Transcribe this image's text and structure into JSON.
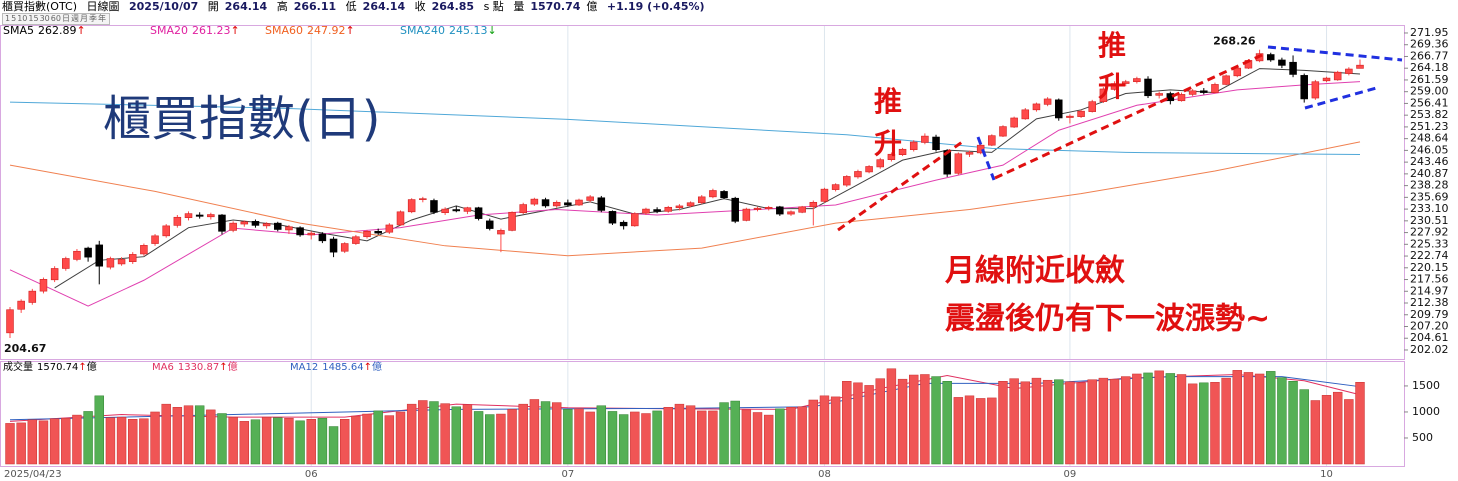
{
  "header": {
    "title": "櫃買指數(OTC)",
    "period": "日線圖",
    "date": "2025/10/07",
    "open_label": "開",
    "high_label": "高",
    "low_label": "低",
    "close_label": "收",
    "unit": "s 點",
    "volume_label": "量",
    "volume_unit": "億",
    "change": "+1.19 (+0.45%)",
    "toolbar": [
      "1",
      "5",
      "10",
      "15",
      "30",
      "60",
      "日",
      "週",
      "月",
      "季",
      "年"
    ]
  },
  "annotations": {
    "big_title": "櫃買指數(日)",
    "push1": [
      "推",
      "升"
    ],
    "push2": [
      "推",
      "升"
    ],
    "note1": "月線附近收斂",
    "note2": "震盪後仍有下一波漲勢~"
  },
  "chart_data": {
    "type": "candlestick",
    "up_color": "#ff4a4a",
    "down_color": "#000000",
    "ylim": [
      200.25,
      273.27
    ],
    "yticks": [
      271.95,
      269.36,
      266.77,
      264.18,
      261.59,
      {
        "value": 259.0,
        "label": "259.00"
      },
      256.41,
      253.82,
      251.23,
      248.64,
      246.05,
      243.46,
      240.87,
      238.28,
      235.69,
      {
        "value": 233.1,
        "label": "233.10"
      },
      230.51,
      227.92,
      225.33,
      222.74,
      220.15,
      217.56,
      214.97,
      212.38,
      209.79,
      {
        "value": 207.2,
        "label": "207.20"
      },
      204.61,
      202.02
    ],
    "xticks": [
      {
        "value": 0,
        "label": "2025/04/23"
      },
      {
        "value": 27,
        "label": "06"
      },
      {
        "value": 50,
        "label": "07"
      },
      {
        "value": 73,
        "label": "08"
      },
      {
        "value": 95,
        "label": "09"
      },
      {
        "value": 118,
        "label": "10"
      }
    ],
    "candles": [
      [
        205.8,
        211.5,
        204.67,
        210.9
      ],
      [
        211,
        213.2,
        210.2,
        212.8
      ],
      [
        212.5,
        215.5,
        212,
        215
      ],
      [
        215,
        218,
        214.5,
        217.6
      ],
      [
        217.5,
        220.5,
        217,
        220
      ],
      [
        220,
        222.6,
        219.5,
        222.2
      ],
      [
        222,
        224.3,
        221.6,
        223.8
      ],
      [
        224.5,
        224.8,
        221.5,
        222.5
      ],
      [
        225.2,
        226.1,
        216.5,
        220.5
      ],
      [
        220.3,
        222.6,
        219.8,
        222.2
      ],
      [
        221,
        222.5,
        220.6,
        222
      ],
      [
        221.5,
        223.6,
        221,
        223.1
      ],
      [
        223.2,
        225.5,
        222.8,
        225.1
      ],
      [
        225.5,
        227.6,
        225,
        227.2
      ],
      [
        227.2,
        229.8,
        226.8,
        229.4
      ],
      [
        229.5,
        231.8,
        229,
        231.3
      ],
      [
        231.2,
        232.6,
        230.6,
        232.1
      ],
      [
        231.8,
        232.4,
        231,
        231.5
      ],
      [
        231.4,
        232.3,
        230.8,
        231.9
      ],
      [
        231.8,
        232,
        227.5,
        228.2
      ],
      [
        228.4,
        230.4,
        228,
        230
      ],
      [
        229.8,
        230.6,
        229.2,
        230.3
      ],
      [
        230.4,
        230.8,
        229,
        229.5
      ],
      [
        229.4,
        230.2,
        228.8,
        229.9
      ],
      [
        230,
        230.3,
        228.2,
        228.6
      ],
      [
        228.5,
        229.6,
        227.6,
        229.2
      ],
      [
        229,
        229.3,
        227,
        227.4
      ],
      [
        227.4,
        228.2,
        226.4,
        227.8
      ],
      [
        227.6,
        228,
        225.6,
        226.1
      ],
      [
        226.5,
        227,
        222.5,
        223.6
      ],
      [
        223.8,
        225.8,
        223.4,
        225.5
      ],
      [
        225.5,
        227.4,
        225.2,
        227
      ],
      [
        227,
        228.5,
        226.6,
        228.2
      ],
      [
        228.2,
        228.8,
        227.4,
        227.8
      ],
      [
        228,
        230,
        227.6,
        229.6
      ],
      [
        229.6,
        232.8,
        229.4,
        232.5
      ],
      [
        232.5,
        235.5,
        232.2,
        235.2
      ],
      [
        235.2,
        235.8,
        234.6,
        235.4
      ],
      [
        235,
        235.4,
        232,
        232.4
      ],
      [
        232.3,
        233.5,
        231.8,
        233.1
      ],
      [
        233,
        233.8,
        232.4,
        232.7
      ],
      [
        232.6,
        233.6,
        232,
        233.4
      ],
      [
        233.4,
        233.6,
        230.6,
        231
      ],
      [
        230.5,
        231,
        228.4,
        228.8
      ],
      [
        227.6,
        228.8,
        223.6,
        228.4
      ],
      [
        228.4,
        232.6,
        228.2,
        232.4
      ],
      [
        232.3,
        234.5,
        232,
        234.1
      ],
      [
        234.2,
        235.6,
        233.8,
        235.3
      ],
      [
        235.2,
        235.6,
        233.4,
        233.8
      ],
      [
        233.8,
        235,
        233.4,
        234.6
      ],
      [
        234.5,
        235.2,
        233.6,
        234
      ],
      [
        234,
        235.4,
        233.8,
        235.1
      ],
      [
        235,
        236.2,
        234.6,
        235.8
      ],
      [
        235.6,
        236,
        232.4,
        232.8
      ],
      [
        232.6,
        232.8,
        229.6,
        230
      ],
      [
        230.2,
        230.6,
        228.6,
        229.4
      ],
      [
        229.4,
        232.4,
        229.2,
        232.1
      ],
      [
        232.2,
        233.4,
        231.8,
        233.1
      ],
      [
        233,
        233.5,
        232.2,
        232.6
      ],
      [
        232.6,
        233.8,
        232.3,
        233.5
      ],
      [
        233.4,
        234.2,
        232.8,
        233.8
      ],
      [
        233.8,
        234.8,
        233.5,
        234.5
      ],
      [
        234.5,
        236.2,
        234.2,
        235.8
      ],
      [
        235.8,
        237.6,
        235.5,
        237.2
      ],
      [
        237,
        237.3,
        235.3,
        235.6
      ],
      [
        235.5,
        235.8,
        230,
        230.4
      ],
      [
        230.6,
        233.4,
        230.4,
        233.1
      ],
      [
        233,
        233.6,
        232.6,
        233.3
      ],
      [
        233.2,
        233.8,
        232.8,
        233.5
      ],
      [
        233.6,
        233.8,
        231.6,
        232
      ],
      [
        232,
        232.8,
        231.6,
        232.5
      ],
      [
        232.4,
        233.8,
        232.2,
        233.6
      ],
      [
        233.6,
        235,
        229.5,
        234.6
      ],
      [
        234.8,
        237.8,
        234.5,
        237.5
      ],
      [
        237.4,
        238.8,
        237,
        238.5
      ],
      [
        238.4,
        240.6,
        238,
        240.3
      ],
      [
        240.2,
        241.8,
        239.8,
        241.4
      ],
      [
        241.3,
        242.8,
        241,
        242.5
      ],
      [
        242.4,
        244.4,
        242,
        244
      ],
      [
        244,
        245.6,
        243.6,
        245.2
      ],
      [
        245.1,
        246.6,
        244.8,
        246.3
      ],
      [
        246.2,
        248.3,
        245.8,
        247.9
      ],
      [
        247.8,
        249.8,
        247.4,
        249.2
      ],
      [
        249,
        249.5,
        245.8,
        246.2
      ],
      [
        246,
        246.3,
        240.2,
        240.8
      ],
      [
        241,
        245.6,
        240.6,
        245.3
      ],
      [
        245.2,
        246,
        244.6,
        245.6
      ],
      [
        245.5,
        247.5,
        245.2,
        247.2
      ],
      [
        247.2,
        249.6,
        247,
        249.3
      ],
      [
        249.2,
        251.6,
        249,
        251.3
      ],
      [
        251.2,
        253.5,
        251,
        253.2
      ],
      [
        253,
        255.4,
        252.8,
        255
      ],
      [
        255,
        256.6,
        254.6,
        256.3
      ],
      [
        256.2,
        257.8,
        255.8,
        257.4
      ],
      [
        257.2,
        257.5,
        252.6,
        253.2
      ],
      [
        253.3,
        254,
        252,
        253.6
      ],
      [
        253.5,
        255,
        253.2,
        254.7
      ],
      [
        254.6,
        257.2,
        254.4,
        256.8
      ],
      [
        256.8,
        260,
        256.5,
        259.6
      ],
      [
        259.5,
        261.3,
        259.2,
        260.8
      ],
      [
        260.8,
        261.6,
        260.2,
        261.2
      ],
      [
        261.2,
        262.3,
        260.8,
        261.9
      ],
      [
        261.8,
        262.4,
        257.6,
        258.1
      ],
      [
        258.2,
        259,
        257.5,
        258.6
      ],
      [
        258.6,
        259,
        256.2,
        257
      ],
      [
        257,
        258.8,
        256.8,
        258.4
      ],
      [
        258.4,
        259.6,
        258,
        259.2
      ],
      [
        259.2,
        259.8,
        258.4,
        258.8
      ],
      [
        258.8,
        261,
        258.6,
        260.6
      ],
      [
        260.6,
        262.8,
        260.4,
        262.5
      ],
      [
        262.5,
        264.6,
        262.2,
        264.2
      ],
      [
        264.2,
        266.2,
        264,
        265.9
      ],
      [
        265.8,
        268.26,
        265.5,
        267.4
      ],
      [
        267.2,
        267.6,
        265.6,
        266
      ],
      [
        266,
        266.5,
        264.2,
        264.8
      ],
      [
        265.5,
        267,
        262.2,
        262.8
      ],
      [
        262.6,
        263,
        256.6,
        257.4
      ],
      [
        257.6,
        261.6,
        257.2,
        261.2
      ],
      [
        261.4,
        262.3,
        261.1,
        262
      ],
      [
        261.6,
        263.6,
        261.4,
        263.3
      ],
      [
        263,
        264.4,
        262.6,
        264
      ],
      [
        264.14,
        266.11,
        264.14,
        264.85
      ]
    ],
    "series": [
      {
        "name": "SMA5",
        "color": "#404040",
        "text_color": "#000000",
        "arrow": "↑",
        "arrow_color": "#e00000",
        "x": [
          4,
          8,
          12,
          16,
          20,
          24,
          28,
          32,
          36,
          40,
          44,
          48,
          52,
          56,
          60,
          64,
          68,
          72,
          76,
          80,
          84,
          88,
          92,
          96,
          100,
          104,
          108,
          112,
          116,
          121
        ],
        "values": [
          215.7,
          221.8,
          222.6,
          229,
          230.7,
          229.7,
          227.8,
          226.1,
          230.7,
          233.8,
          230.9,
          232.8,
          234.7,
          232,
          233,
          235.4,
          233.2,
          233.2,
          238.5,
          243.9,
          246.1,
          245.6,
          253,
          255,
          258.6,
          259.4,
          258.8,
          264.1,
          263.7,
          262.89
        ]
      },
      {
        "name": "SMA20",
        "color": "#e040b0",
        "text_color": "#e020a0",
        "arrow": "↑",
        "arrow_color": "#e00000",
        "x": [
          0,
          7,
          12,
          20,
          27,
          35,
          42,
          49,
          58,
          67,
          74,
          83,
          89,
          94,
          101,
          110,
          116,
          121
        ],
        "values": [
          219.7,
          211.7,
          217.4,
          228.9,
          227.4,
          229,
          231.8,
          233,
          231.8,
          233,
          234,
          239.5,
          242.8,
          250.5,
          256,
          259.4,
          260.5,
          261.23
        ]
      },
      {
        "name": "SMA60",
        "color": "#f08050",
        "text_color": "#f06020",
        "arrow": "↑",
        "arrow_color": "#e00000",
        "x": [
          0,
          13,
          26,
          39,
          50,
          62,
          74,
          86,
          96,
          108,
          121
        ],
        "values": [
          242.8,
          237,
          230,
          225,
          222.8,
          224.5,
          230,
          233,
          236.5,
          241.5,
          247.92
        ]
      },
      {
        "name": "SMA240",
        "color": "#50a8d8",
        "text_color": "#2090c0",
        "arrow": "↓",
        "arrow_color": "#10a010",
        "x": [
          0,
          25,
          50,
          75,
          88,
          100,
          121
        ],
        "values": [
          256.7,
          255.3,
          252.9,
          249.5,
          246.5,
          245.6,
          245.13
        ]
      }
    ],
    "volume": {
      "label": "成交量",
      "arrow": "↑",
      "unit": "億",
      "up_color": "#f05555",
      "down_color": "#55b055",
      "ylim": [
        0,
        1960
      ],
      "yticks": [
        500,
        1000,
        1500
      ],
      "values": [
        780,
        790,
        850,
        830,
        870,
        880,
        940,
        1010,
        1310,
        890,
        900,
        860,
        870,
        1000,
        1150,
        1090,
        1120,
        1120,
        1040,
        970,
        900,
        820,
        850,
        900,
        890,
        880,
        830,
        860,
        880,
        720,
        860,
        920,
        960,
        1020,
        930,
        1000,
        1150,
        1220,
        1200,
        1160,
        1100,
        1140,
        1010,
        950,
        960,
        1050,
        1150,
        1240,
        1200,
        1180,
        1050,
        1060,
        1000,
        1120,
        1010,
        950,
        1000,
        970,
        1020,
        1090,
        1150,
        1120,
        1020,
        1020,
        1180,
        1210,
        1040,
        990,
        940,
        1060,
        1090,
        1100,
        1230,
        1310,
        1290,
        1590,
        1560,
        1510,
        1640,
        1830,
        1630,
        1710,
        1720,
        1680,
        1590,
        1280,
        1310,
        1260,
        1270,
        1590,
        1640,
        1580,
        1650,
        1610,
        1620,
        1580,
        1560,
        1620,
        1650,
        1630,
        1680,
        1730,
        1750,
        1790,
        1740,
        1720,
        1540,
        1560,
        1570,
        1650,
        1800,
        1760,
        1730,
        1780,
        1660,
        1590,
        1430,
        1220,
        1320,
        1380,
        1240,
        1570.74
      ],
      "series": [
        {
          "name": "MA6",
          "color": "#e03060",
          "arrow": "↑",
          "unit": "億",
          "x": [
            0,
            10,
            20,
            30,
            40,
            50,
            60,
            70,
            78,
            84,
            90,
            100,
            110,
            116,
            121
          ],
          "values": [
            820,
            950,
            900,
            900,
            1150,
            1080,
            1060,
            1050,
            1450,
            1700,
            1450,
            1650,
            1720,
            1600,
            1330.87
          ]
        },
        {
          "name": "MA12",
          "color": "#3060c0",
          "arrow": "↑",
          "unit": "億",
          "x": [
            0,
            20,
            40,
            60,
            72,
            82,
            92,
            104,
            114,
            121
          ],
          "values": [
            850,
            950,
            1050,
            1070,
            1100,
            1550,
            1550,
            1680,
            1680,
            1485.64
          ]
        }
      ]
    }
  }
}
